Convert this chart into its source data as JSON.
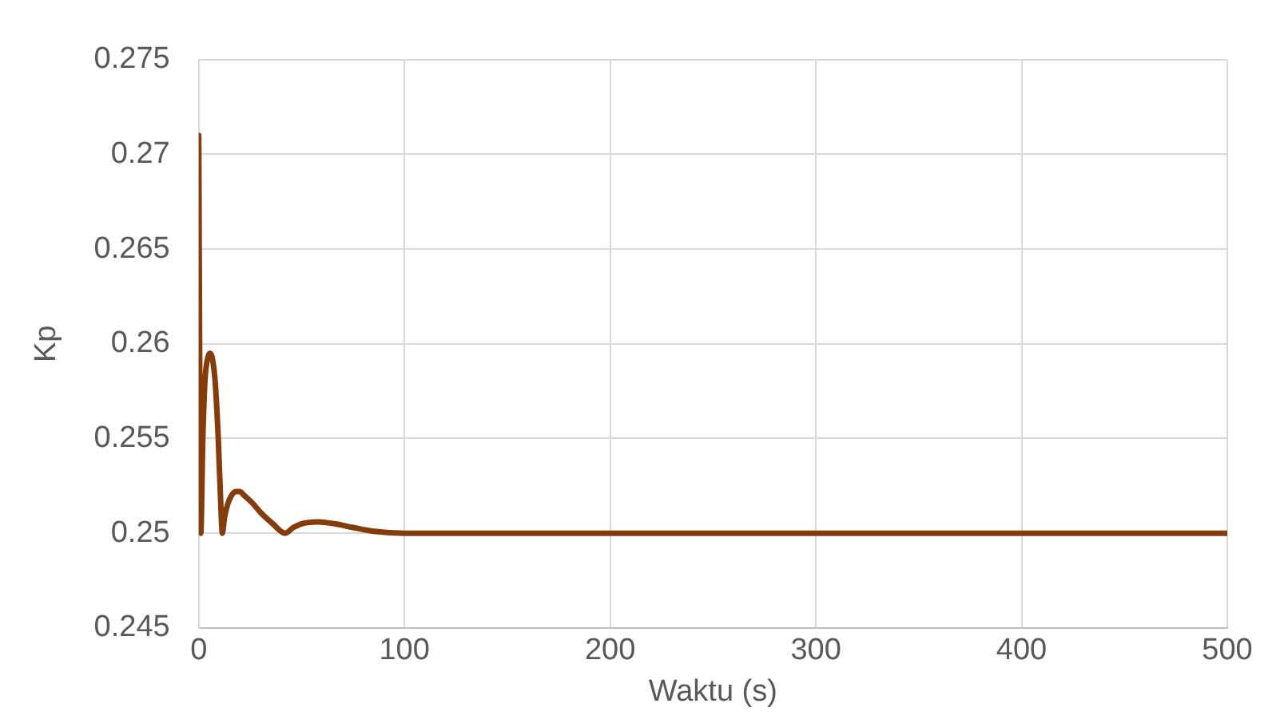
{
  "chart_data": {
    "type": "line",
    "xlabel": "Waktu (s)",
    "ylabel": "Kp",
    "x": [
      0,
      1,
      2,
      3,
      4.5,
      5.5,
      6.5,
      8,
      9.5,
      11,
      11.5,
      12.5,
      14,
      16,
      18,
      20,
      22,
      26,
      30,
      36,
      42,
      46,
      50,
      58,
      66,
      75,
      85,
      100,
      120,
      145,
      175,
      230,
      300,
      400,
      500
    ],
    "series": [
      {
        "color": "#843c0c",
        "values": [
          0.271,
          0.25,
          0.255,
          0.258,
          0.2593,
          0.2595,
          0.2593,
          0.258,
          0.255,
          0.2508,
          0.25,
          0.2508,
          0.2515,
          0.252,
          0.2522,
          0.2522,
          0.252,
          0.2516,
          0.2511,
          0.2505,
          0.25,
          0.2503,
          0.2505,
          0.2506,
          0.2505,
          0.2503,
          0.2501,
          0.25,
          0.25,
          0.25,
          0.25,
          0.25,
          0.25,
          0.25,
          0.25
        ]
      }
    ],
    "xlim": [
      0,
      500
    ],
    "xticks": [
      0,
      100,
      200,
      300,
      400,
      500
    ],
    "ylim": [
      0.245,
      0.275
    ],
    "yticks": [
      0.245,
      0.25,
      0.255,
      0.26,
      0.265,
      0.27,
      0.275
    ],
    "grid": true,
    "legend": false,
    "marker": "none",
    "line_style": "solid"
  }
}
